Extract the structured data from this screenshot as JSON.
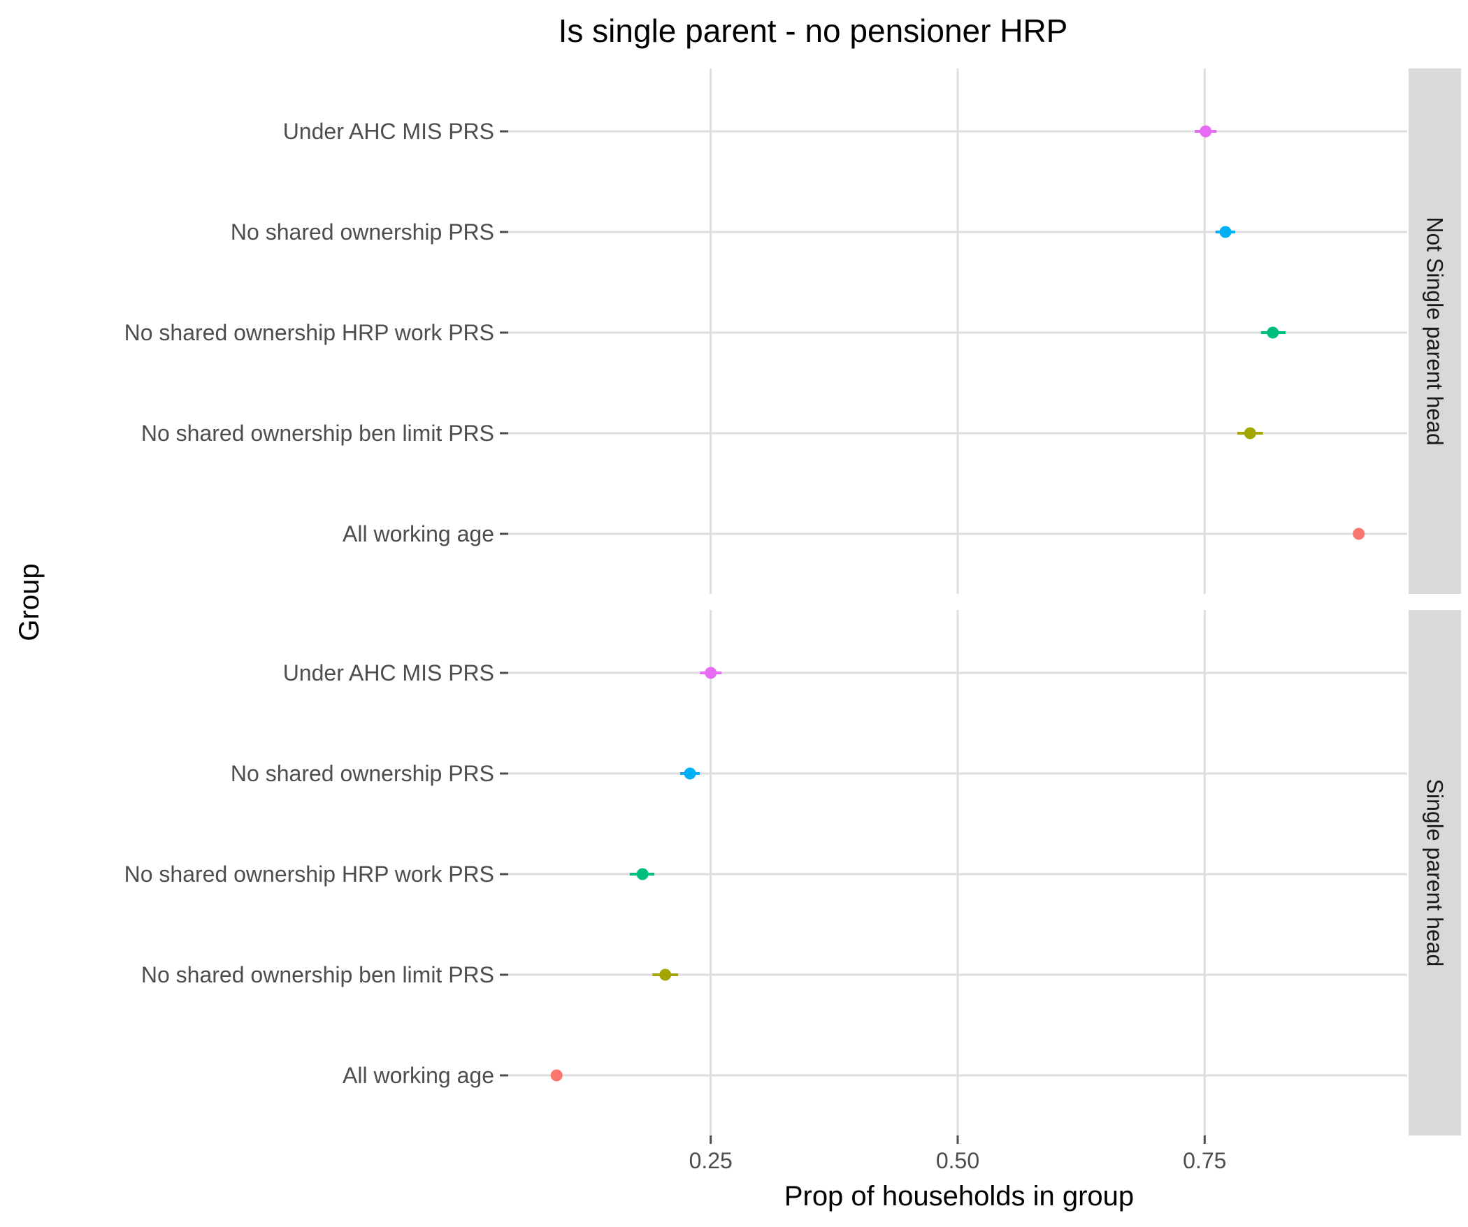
{
  "chart_data": {
    "type": "scatter",
    "title": "Is single parent - no pensioner HRP",
    "xlabel": "Prop of households in group",
    "ylabel": "Group",
    "xlim": [
      0.045,
      0.955
    ],
    "x_ticks": [
      0.25,
      0.5,
      0.75
    ],
    "x_tick_labels": [
      "0.25",
      "0.50",
      "0.75"
    ],
    "grid": true,
    "categories": [
      "Under AHC MIS PRS",
      "No shared ownership PRS",
      "No shared ownership HRP work PRS",
      "No shared ownership ben limit PRS",
      "All working age"
    ],
    "category_colors": [
      "#e76bf3",
      "#00b0f6",
      "#00bf7d",
      "#a3a500",
      "#f8766d"
    ],
    "panels": [
      {
        "strip": "Not Single parent head",
        "points": [
          {
            "group": "Under AHC MIS PRS",
            "value": 0.751,
            "lower": 0.74,
            "upper": 0.762
          },
          {
            "group": "No shared ownership PRS",
            "value": 0.771,
            "lower": 0.761,
            "upper": 0.781
          },
          {
            "group": "No shared ownership HRP work PRS",
            "value": 0.819,
            "lower": 0.807,
            "upper": 0.832
          },
          {
            "group": "No shared ownership ben limit PRS",
            "value": 0.796,
            "lower": 0.783,
            "upper": 0.809
          },
          {
            "group": "All working age",
            "value": 0.906,
            "lower": 0.904,
            "upper": 0.908
          }
        ]
      },
      {
        "strip": "Single parent head",
        "points": [
          {
            "group": "Under AHC MIS PRS",
            "value": 0.25,
            "lower": 0.239,
            "upper": 0.261
          },
          {
            "group": "No shared ownership PRS",
            "value": 0.229,
            "lower": 0.219,
            "upper": 0.239
          },
          {
            "group": "No shared ownership HRP work PRS",
            "value": 0.181,
            "lower": 0.168,
            "upper": 0.193
          },
          {
            "group": "No shared ownership ben limit PRS",
            "value": 0.204,
            "lower": 0.191,
            "upper": 0.217
          },
          {
            "group": "All working age",
            "value": 0.094,
            "lower": 0.092,
            "upper": 0.096
          }
        ]
      }
    ]
  }
}
